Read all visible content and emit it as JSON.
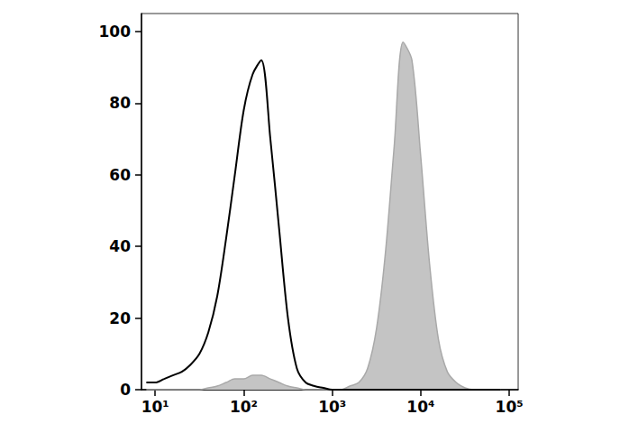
{
  "chart_data": {
    "type": "line",
    "log": "x",
    "grid": false,
    "x": [
      7.94,
      10,
      12.6,
      15.8,
      20,
      25.1,
      31.6,
      39.8,
      50.1,
      63.1,
      79.4,
      100,
      126,
      158,
      200,
      251,
      316,
      398,
      501,
      631,
      794,
      1000,
      1259,
      1585,
      1995,
      2512,
      3162,
      3981,
      5012,
      6310,
      7943,
      10000,
      12589,
      15849,
      19953,
      25119,
      31623,
      39811,
      50119,
      63096,
      79433
    ],
    "series": [
      {
        "type": "line",
        "color": "#000000",
        "values": [
          2,
          2,
          3,
          4,
          5,
          7,
          10,
          16,
          26,
          42,
          60,
          78,
          88,
          92,
          70,
          45,
          20,
          6,
          2,
          1,
          0.5,
          0,
          0,
          0,
          0,
          0,
          0,
          0,
          0,
          0,
          0,
          0,
          0,
          0,
          0,
          0,
          0,
          0,
          0,
          0,
          0
        ]
      },
      {
        "type": "area",
        "color": "#c4c4c4",
        "values": [
          0,
          0,
          0,
          0,
          0,
          0,
          0,
          0.5,
          1,
          2,
          3,
          3,
          4,
          4,
          3,
          2,
          1,
          0.5,
          0,
          0,
          0,
          0,
          0,
          1,
          2,
          6,
          17,
          38,
          68,
          97,
          92,
          65,
          35,
          14,
          5,
          2,
          0.5,
          0,
          0,
          0,
          0
        ]
      }
    ],
    "xlim": [
      7,
      126000
    ],
    "xticks": [
      {
        "value": 10,
        "label": "10¹"
      },
      {
        "value": 100,
        "label": "10²"
      },
      {
        "value": 1000,
        "label": "10³"
      },
      {
        "value": 10000,
        "label": "10⁴"
      },
      {
        "value": 100000,
        "label": "10⁵"
      }
    ],
    "ylim": [
      0,
      105
    ],
    "yticks": [
      0,
      20,
      40,
      60,
      80,
      100
    ]
  }
}
